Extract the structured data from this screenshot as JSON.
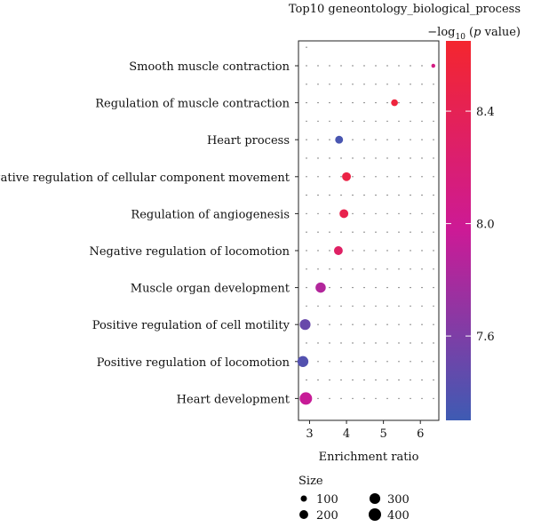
{
  "chart_data": {
    "type": "scatter",
    "title": "Top10 geneontology_biological_process",
    "xlabel": "Enrichment ratio",
    "xlim": [
      2.7,
      6.5
    ],
    "x_ticks": [
      3,
      4,
      5,
      6
    ],
    "categories": [
      "Smooth muscle contraction",
      "Regulation of muscle contraction",
      "Heart process",
      "Negative regulation of cellular component movement",
      "Regulation of angiogenesis",
      "Negative regulation of locomotion",
      "Muscle organ development",
      "Positive regulation of cell motility",
      "Positive regulation of locomotion",
      "Heart development"
    ],
    "points": [
      {
        "category": "Smooth muscle contraction",
        "x": 6.35,
        "neglog10p": 8.1,
        "size": 40
      },
      {
        "category": "Regulation of muscle contraction",
        "x": 5.3,
        "neglog10p": 8.55,
        "size": 120
      },
      {
        "category": "Heart process",
        "x": 3.8,
        "neglog10p": 7.35,
        "size": 160
      },
      {
        "category": "Negative regulation of cellular component movement",
        "x": 4.0,
        "neglog10p": 8.5,
        "size": 200
      },
      {
        "category": "Regulation of angiogenesis",
        "x": 3.93,
        "neglog10p": 8.45,
        "size": 200
      },
      {
        "category": "Negative regulation of locomotion",
        "x": 3.78,
        "neglog10p": 8.3,
        "size": 200
      },
      {
        "category": "Muscle organ development",
        "x": 3.3,
        "neglog10p": 7.85,
        "size": 270
      },
      {
        "category": "Positive regulation of cell motility",
        "x": 2.88,
        "neglog10p": 7.5,
        "size": 300
      },
      {
        "category": "Positive regulation of locomotion",
        "x": 2.82,
        "neglog10p": 7.4,
        "size": 310
      },
      {
        "category": "Heart development",
        "x": 2.9,
        "neglog10p": 7.95,
        "size": 400
      }
    ],
    "color_legend": {
      "title_prefix": "−log",
      "title_sub": "10",
      "title_open": " (",
      "title_p": "p",
      "title_close": " value)",
      "range": [
        7.3,
        8.65
      ],
      "ticks": [
        "7.6",
        "8.0",
        "8.4"
      ],
      "low_color": "#3e5bb3",
      "mid_color": "#cc1a96",
      "high_color": "#f4262e"
    },
    "size_legend": {
      "title": "Size",
      "entries": [
        "100",
        "200",
        "300",
        "400"
      ]
    },
    "grid": "dotted"
  }
}
